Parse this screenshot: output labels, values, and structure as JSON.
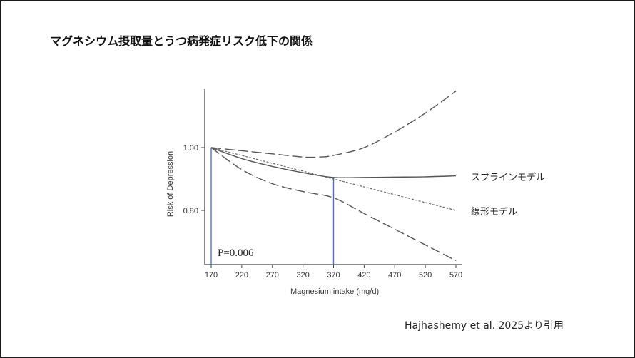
{
  "slide": {
    "title": "マグネシウム摂取量とうつ病発症リスク低下の関係",
    "citation": "Hajhashemy et al. 2025より引用"
  },
  "chart_data": {
    "type": "line",
    "title": "",
    "xlabel": "Magnesium intake (mg/d)",
    "ylabel": "Risk of Depression",
    "xlim": [
      165,
      580
    ],
    "ylim": [
      0.63,
      1.21
    ],
    "x_ticks": [
      170,
      220,
      270,
      320,
      370,
      420,
      470,
      520,
      570
    ],
    "y_ticks": [
      0.8,
      1.0
    ],
    "y_tick_labels": [
      "0.80",
      "1.00"
    ],
    "grid": false,
    "annotation_p": "P=0.006",
    "reference_lines": [
      {
        "x": 170,
        "color": "#4a72c4"
      },
      {
        "x": 370,
        "color": "#4a72c4"
      }
    ],
    "series": [
      {
        "name": "upper_ci",
        "style": "long-dash",
        "x": [
          170,
          220,
          270,
          320,
          345,
          370,
          420,
          470,
          520,
          570
        ],
        "values": [
          1.0,
          0.99,
          0.98,
          0.97,
          0.97,
          0.975,
          1.0,
          1.05,
          1.11,
          1.18
        ]
      },
      {
        "name": "スプラインモデル",
        "style": "solid",
        "x": [
          170,
          220,
          270,
          320,
          370,
          420,
          470,
          520,
          570
        ],
        "values": [
          1.0,
          0.965,
          0.94,
          0.92,
          0.905,
          0.905,
          0.906,
          0.907,
          0.91
        ]
      },
      {
        "name": "線形モデル",
        "style": "dotted",
        "x": [
          170,
          270,
          370,
          470,
          570
        ],
        "values": [
          1.0,
          0.95,
          0.9,
          0.85,
          0.8
        ]
      },
      {
        "name": "lower_ci",
        "style": "long-dash",
        "x": [
          170,
          220,
          270,
          320,
          370,
          420,
          470,
          520,
          570
        ],
        "values": [
          1.0,
          0.93,
          0.885,
          0.86,
          0.84,
          0.79,
          0.74,
          0.69,
          0.64
        ]
      }
    ],
    "legend_labels": {
      "spline": "スプラインモデル",
      "linear": "線形モデル"
    }
  }
}
